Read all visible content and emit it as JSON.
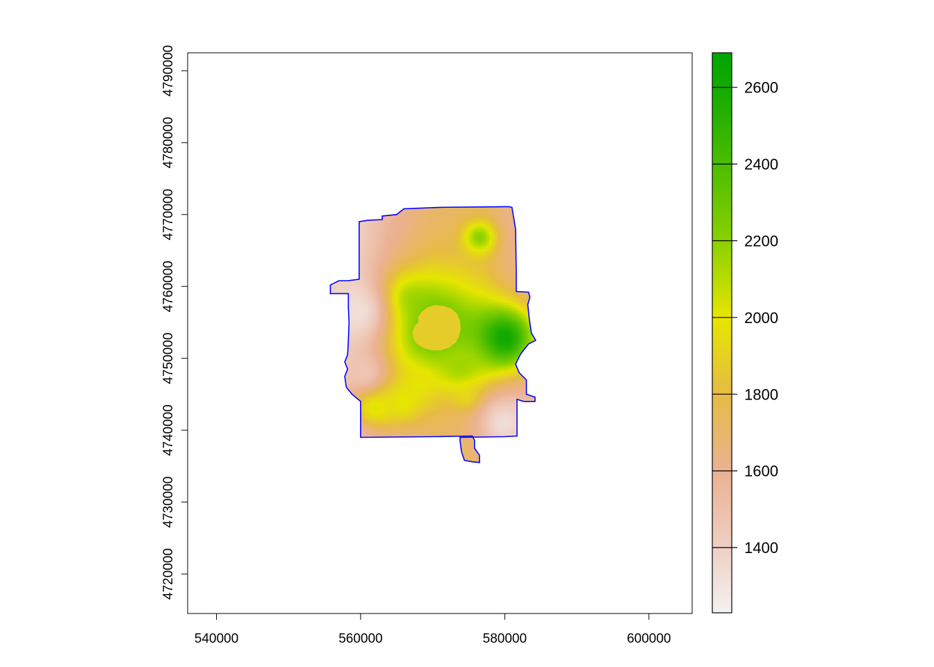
{
  "chart_data": {
    "type": "heatmap",
    "title": "",
    "xlabel": "",
    "ylabel": "",
    "xlim": [
      536000,
      606000
    ],
    "ylim": [
      4714500,
      4792500
    ],
    "x_ticks": [
      540000,
      560000,
      580000,
      600000
    ],
    "x_tick_labels": [
      "540000",
      "560000",
      "580000",
      "600000"
    ],
    "y_ticks": [
      4720000,
      4730000,
      4740000,
      4750000,
      4760000,
      4770000,
      4780000,
      4790000
    ],
    "y_tick_labels": [
      "4720000",
      "4730000",
      "4740000",
      "4750000",
      "4760000",
      "4770000",
      "4780000",
      "4790000"
    ],
    "grid": false,
    "legend_position": "right",
    "boundary_color": "#0000ff",
    "value_range": [
      1230,
      2690
    ],
    "lake_elevation": 1880,
    "colorbar": {
      "min": 1230,
      "max": 2690,
      "ticks": [
        1400,
        1600,
        1800,
        2000,
        2200,
        2400,
        2600
      ],
      "tick_labels": [
        "1400",
        "1600",
        "1800",
        "2000",
        "2200",
        "2400",
        "2600"
      ],
      "color_stops": [
        {
          "value": 1230,
          "color": "#f2f2f2"
        },
        {
          "value": 1400,
          "color": "#efcfc3"
        },
        {
          "value": 1600,
          "color": "#ebb192"
        },
        {
          "value": 1800,
          "color": "#e6bb44"
        },
        {
          "value": 2000,
          "color": "#e6e600"
        },
        {
          "value": 2200,
          "color": "#8ad000"
        },
        {
          "value": 2400,
          "color": "#4bbd00"
        },
        {
          "value": 2600,
          "color": "#12aa00"
        },
        {
          "value": 2690,
          "color": "#00a600"
        }
      ]
    },
    "boundary_polygon": [
      [
        560000,
        4739000
      ],
      [
        560000,
        4744000
      ],
      [
        558800,
        4745000
      ],
      [
        558000,
        4746000
      ],
      [
        557800,
        4747500
      ],
      [
        558200,
        4748500
      ],
      [
        557800,
        4749500
      ],
      [
        558200,
        4750500
      ],
      [
        558300,
        4752500
      ],
      [
        558400,
        4755000
      ],
      [
        558300,
        4757000
      ],
      [
        558300,
        4759000
      ],
      [
        555800,
        4759000
      ],
      [
        555800,
        4760200
      ],
      [
        557000,
        4760800
      ],
      [
        558200,
        4760800
      ],
      [
        559800,
        4761000
      ],
      [
        559800,
        4769000
      ],
      [
        561000,
        4769200
      ],
      [
        563000,
        4769300
      ],
      [
        563000,
        4769800
      ],
      [
        565000,
        4770000
      ],
      [
        566000,
        4770800
      ],
      [
        571000,
        4771000
      ],
      [
        580500,
        4771100
      ],
      [
        581000,
        4771000
      ],
      [
        581500,
        4768000
      ],
      [
        581600,
        4762000
      ],
      [
        581600,
        4759300
      ],
      [
        583300,
        4759200
      ],
      [
        583500,
        4758500
      ],
      [
        583200,
        4757500
      ],
      [
        583400,
        4755500
      ],
      [
        583700,
        4753500
      ],
      [
        584300,
        4752500
      ],
      [
        583300,
        4752000
      ],
      [
        582200,
        4750600
      ],
      [
        581500,
        4749200
      ],
      [
        582000,
        4748000
      ],
      [
        583000,
        4747000
      ],
      [
        583000,
        4745000
      ],
      [
        584200,
        4744600
      ],
      [
        584200,
        4744000
      ],
      [
        582600,
        4744000
      ],
      [
        581700,
        4744300
      ],
      [
        581700,
        4739200
      ],
      [
        580000,
        4739100
      ],
      [
        573800,
        4739000
      ],
      [
        573800,
        4738500
      ],
      [
        574000,
        4737000
      ],
      [
        574400,
        4735800
      ],
      [
        575500,
        4735600
      ],
      [
        576500,
        4735500
      ],
      [
        576500,
        4736500
      ],
      [
        575800,
        4737500
      ],
      [
        575800,
        4738600
      ],
      [
        575500,
        4739200
      ],
      [
        570000,
        4739100
      ],
      [
        560000,
        4739000
      ]
    ],
    "lake_polygon": [
      [
        568000,
        4755000
      ],
      [
        567500,
        4754500
      ],
      [
        567200,
        4753800
      ],
      [
        567300,
        4752800
      ],
      [
        567800,
        4752000
      ],
      [
        568800,
        4751400
      ],
      [
        569900,
        4751100
      ],
      [
        571100,
        4751100
      ],
      [
        572300,
        4751500
      ],
      [
        573200,
        4752200
      ],
      [
        573600,
        4753000
      ],
      [
        573900,
        4754000
      ],
      [
        573800,
        4755200
      ],
      [
        573400,
        4756200
      ],
      [
        572600,
        4756900
      ],
      [
        571500,
        4757300
      ],
      [
        570300,
        4757400
      ],
      [
        569300,
        4757100
      ],
      [
        568500,
        4756500
      ],
      [
        568000,
        4755800
      ]
    ],
    "elevation_model": {
      "base": [
        {
          "x": 560000,
          "value": 1400
        },
        {
          "x": 564000,
          "value": 1560
        },
        {
          "x": 570000,
          "value": 1700
        },
        {
          "x": 577000,
          "value": 1720
        },
        {
          "x": 580000,
          "value": 1640
        },
        {
          "x": 583000,
          "value": 1580
        }
      ],
      "peaks": [
        {
          "x": 570300,
          "y": 4754300,
          "radius": 5600,
          "value": 2320
        },
        {
          "x": 580000,
          "y": 4752800,
          "radius": 3200,
          "value": 2620
        },
        {
          "x": 566000,
          "y": 4757600,
          "radius": 2400,
          "value": 2250
        },
        {
          "x": 576500,
          "y": 4766800,
          "radius": 1600,
          "value": 2200
        },
        {
          "x": 562000,
          "y": 4743500,
          "radius": 2500,
          "value": 2050
        },
        {
          "x": 566000,
          "y": 4744000,
          "radius": 2200,
          "value": 2000
        },
        {
          "x": 574000,
          "y": 4749000,
          "radius": 2200,
          "value": 2150
        },
        {
          "x": 568000,
          "y": 4746500,
          "radius": 1700,
          "value": 1990
        },
        {
          "x": 575000,
          "y": 4744500,
          "radius": 1200,
          "value": 1980
        }
      ],
      "lows": [
        {
          "x": 559500,
          "y": 4756500,
          "radius": 3400,
          "value": 1320
        },
        {
          "x": 580000,
          "y": 4741000,
          "radius": 2800,
          "value": 1330
        },
        {
          "x": 560500,
          "y": 4748000,
          "radius": 2000,
          "value": 1460
        }
      ]
    }
  }
}
